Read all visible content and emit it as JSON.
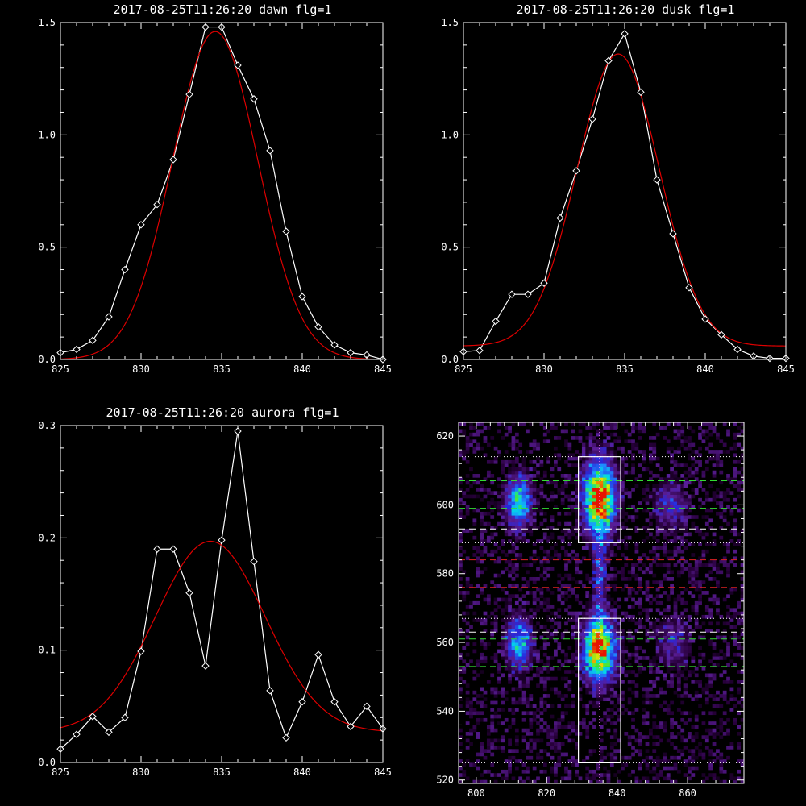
{
  "chart_data": [
    {
      "type": "line",
      "title": "2017-08-25T11:26:20 dawn flg=1",
      "xlim": [
        825,
        845
      ],
      "ylim": [
        0,
        1.5
      ],
      "x_ticks": [
        "825",
        "830",
        "835",
        "840",
        "845"
      ],
      "y_ticks": [
        "0.0",
        "0.5",
        "1.0",
        "1.5"
      ],
      "series": [
        {
          "kind": "data",
          "color": "#ffffff",
          "marker": "diamond",
          "x": [
            825,
            826,
            827,
            828,
            829,
            830,
            831,
            832,
            833,
            834,
            835,
            836,
            837,
            838,
            839,
            840,
            841,
            842,
            843,
            844,
            845
          ],
          "y": [
            0.03,
            0.045,
            0.085,
            0.19,
            0.4,
            0.6,
            0.69,
            0.89,
            1.18,
            1.48,
            1.48,
            1.31,
            1.16,
            0.93,
            0.57,
            0.28,
            0.145,
            0.065,
            0.03,
            0.02,
            0.0
          ]
        },
        {
          "kind": "fit",
          "color": "#dd0000",
          "model": "gaussian",
          "amp": 1.46,
          "center": 834.6,
          "sigma": 2.65,
          "offset": 0.0
        }
      ]
    },
    {
      "type": "line",
      "title": "2017-08-25T11:26:20 dusk flg=1",
      "xlim": [
        825,
        845
      ],
      "ylim": [
        0,
        1.5
      ],
      "x_ticks": [
        "825",
        "830",
        "835",
        "840",
        "845"
      ],
      "y_ticks": [
        "0.0",
        "0.5",
        "1.0",
        "1.5"
      ],
      "series": [
        {
          "kind": "data",
          "color": "#ffffff",
          "marker": "diamond",
          "x": [
            825,
            826,
            827,
            828,
            829,
            830,
            831,
            832,
            833,
            834,
            835,
            836,
            837,
            838,
            839,
            840,
            841,
            842,
            843,
            844,
            845
          ],
          "y": [
            0.035,
            0.04,
            0.17,
            0.29,
            0.29,
            0.34,
            0.63,
            0.84,
            1.07,
            1.33,
            1.45,
            1.19,
            0.8,
            0.56,
            0.32,
            0.18,
            0.11,
            0.045,
            0.015,
            0.005,
            0.005
          ]
        },
        {
          "kind": "fit",
          "color": "#dd0000",
          "model": "gaussian",
          "amp": 1.3,
          "center": 834.6,
          "sigma": 2.55,
          "offset": 0.06
        }
      ]
    },
    {
      "type": "line",
      "title": "2017-08-25T11:26:20 aurora flg=1",
      "xlim": [
        825,
        845
      ],
      "ylim": [
        0,
        0.3
      ],
      "x_ticks": [
        "825",
        "830",
        "835",
        "840",
        "845"
      ],
      "y_ticks": [
        "0.0",
        "0.1",
        "0.2",
        "0.3"
      ],
      "series": [
        {
          "kind": "data",
          "color": "#ffffff",
          "marker": "diamond",
          "x": [
            825,
            826,
            827,
            828,
            829,
            830,
            831,
            832,
            833,
            834,
            835,
            836,
            837,
            838,
            839,
            840,
            841,
            842,
            843,
            844,
            845
          ],
          "y": [
            0.012,
            0.025,
            0.041,
            0.027,
            0.04,
            0.099,
            0.19,
            0.19,
            0.151,
            0.086,
            0.198,
            0.295,
            0.179,
            0.064,
            0.022,
            0.054,
            0.096,
            0.054,
            0.032,
            0.05,
            0.03
          ]
        },
        {
          "kind": "fit",
          "color": "#dd0000",
          "model": "gaussian",
          "amp": 0.17,
          "center": 834.3,
          "sigma": 3.4,
          "offset": 0.027
        }
      ]
    },
    {
      "type": "heatmap",
      "title": "",
      "xlim": [
        795,
        876
      ],
      "ylim": [
        519,
        624
      ],
      "x_ticks": [
        "800",
        "820",
        "840",
        "860"
      ],
      "y_ticks": [
        "520",
        "540",
        "560",
        "580",
        "600",
        "620"
      ],
      "blobs": [
        {
          "x": 835,
          "y": 602,
          "sx": 3.0,
          "sy": 7,
          "amp": 1.0
        },
        {
          "x": 835,
          "y": 558,
          "sx": 3.0,
          "sy": 6,
          "amp": 0.95
        },
        {
          "x": 812,
          "y": 601,
          "sx": 2.5,
          "sy": 5,
          "amp": 0.55
        },
        {
          "x": 812,
          "y": 560,
          "sx": 2.5,
          "sy": 5,
          "amp": 0.5
        },
        {
          "x": 855,
          "y": 600,
          "sx": 3.0,
          "sy": 5,
          "amp": 0.25
        },
        {
          "x": 856,
          "y": 560,
          "sx": 3.0,
          "sy": 5,
          "amp": 0.22
        },
        {
          "x": 835,
          "y": 580,
          "sx": 1.2,
          "sy": 10,
          "amp": 0.3
        }
      ],
      "boxes": [
        {
          "x": [
            829,
            841
          ],
          "y": [
            589,
            614
          ]
        },
        {
          "x": [
            829,
            841
          ],
          "y": [
            525,
            567
          ]
        }
      ],
      "h_lines": [
        {
          "y": 614,
          "color": "#ffffff",
          "style": "dotted"
        },
        {
          "y": 607,
          "color": "#33dd33",
          "style": "dashed"
        },
        {
          "y": 599,
          "color": "#33dd33",
          "style": "dashed"
        },
        {
          "y": 593,
          "color": "#ffffff",
          "style": "dashed"
        },
        {
          "y": 589,
          "color": "#ffffff",
          "style": "dotted"
        },
        {
          "y": 584,
          "color": "#dd2222",
          "style": "dashed"
        },
        {
          "y": 576,
          "color": "#dd2222",
          "style": "dashed"
        },
        {
          "y": 567,
          "color": "#ffffff",
          "style": "dotted"
        },
        {
          "y": 563,
          "color": "#ffffff",
          "style": "dashed"
        },
        {
          "y": 561,
          "color": "#33dd33",
          "style": "dashed"
        },
        {
          "y": 553,
          "color": "#33dd33",
          "style": "dashed"
        },
        {
          "y": 525,
          "color": "#ffffff",
          "style": "dotted"
        }
      ],
      "v_line": {
        "x": 835,
        "color": "#ff88ff",
        "style": "dotted"
      }
    }
  ]
}
